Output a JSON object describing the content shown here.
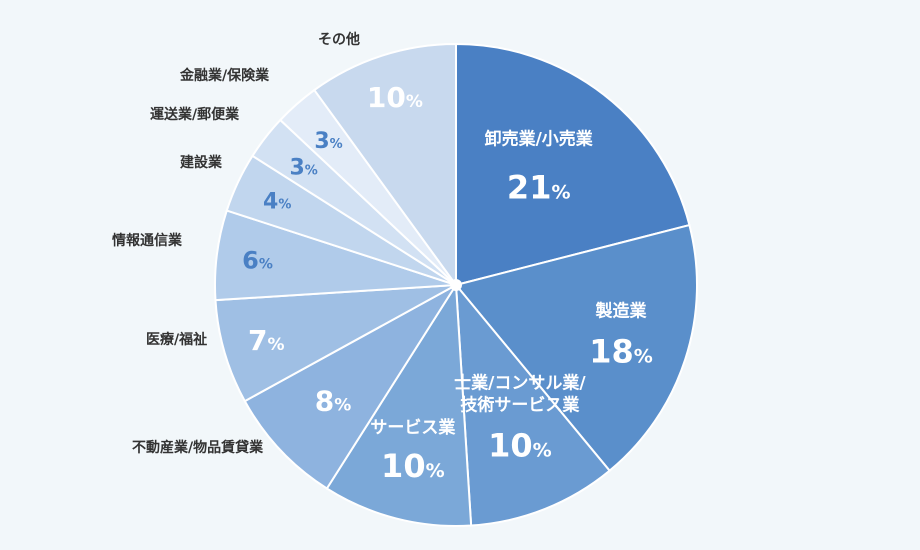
{
  "chart_data": {
    "type": "pie",
    "title": "",
    "slices": [
      {
        "label": "卸売業/小売業",
        "value": 21,
        "color": "#4a80c4"
      },
      {
        "label": "製造業",
        "value": 18,
        "color": "#5a8fcb"
      },
      {
        "label": "士業/コンサル業/\n技術サービス業",
        "value": 10,
        "color": "#6a9bd2"
      },
      {
        "label": "サービス業",
        "value": 10,
        "color": "#7ba8d8"
      },
      {
        "label": "不動産業/物品賃貸業",
        "value": 8,
        "color": "#8eb3df"
      },
      {
        "label": "医療/福祉",
        "value": 7,
        "color": "#9fbfe4"
      },
      {
        "label": "情報通信業",
        "value": 6,
        "color": "#b0cbea"
      },
      {
        "label": "建設業",
        "value": 4,
        "color": "#c1d6ee"
      },
      {
        "label": "運送業/郵便業",
        "value": 3,
        "color": "#d2e1f3"
      },
      {
        "label": "金融業/保険業",
        "value": 3,
        "color": "#e3ecf8"
      },
      {
        "label": "その他",
        "value": 10,
        "color": "#c8d9ee"
      }
    ],
    "unit": "%"
  }
}
